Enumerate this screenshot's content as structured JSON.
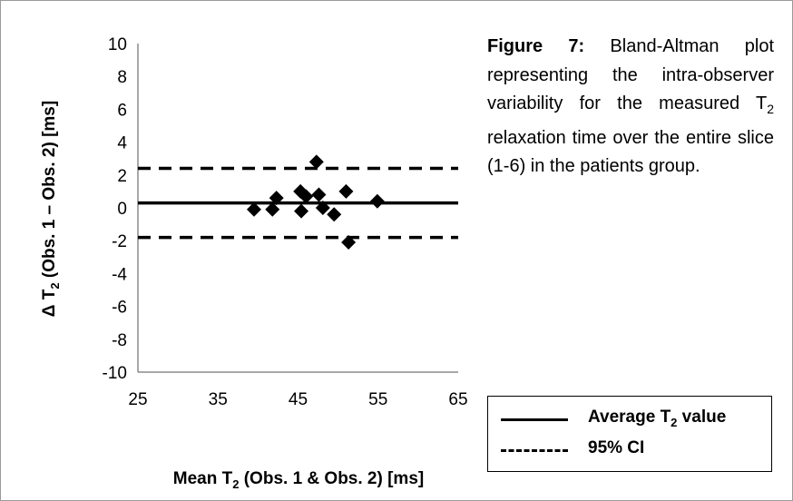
{
  "chart_data": {
    "type": "scatter",
    "x_axis": {
      "label": "Mean T",
      "label_sub": "2",
      "label_rest": " (Obs. 1 & Obs. 2) [ms]",
      "min": 25,
      "max": 65,
      "ticks": [
        25,
        35,
        45,
        55,
        65
      ]
    },
    "y_axis": {
      "label": "Δ T",
      "label_sub": "2",
      "label_rest": " (Obs. 1 – Obs. 2) [ms]",
      "min": -10,
      "max": 10,
      "ticks": [
        10,
        8,
        6,
        4,
        2,
        0,
        -2,
        -4,
        -6,
        -8,
        -10
      ]
    },
    "points": [
      {
        "x": 39.5,
        "y": -0.1
      },
      {
        "x": 41.8,
        "y": -0.1
      },
      {
        "x": 42.3,
        "y": 0.6
      },
      {
        "x": 45.3,
        "y": 1.0
      },
      {
        "x": 45.4,
        "y": -0.2
      },
      {
        "x": 46.0,
        "y": 0.7
      },
      {
        "x": 47.3,
        "y": 2.8
      },
      {
        "x": 47.6,
        "y": 0.8
      },
      {
        "x": 48.1,
        "y": 0.0
      },
      {
        "x": 49.5,
        "y": -0.4
      },
      {
        "x": 51.0,
        "y": 1.0
      },
      {
        "x": 51.3,
        "y": -2.1
      },
      {
        "x": 54.9,
        "y": 0.4
      }
    ],
    "lines": [
      {
        "name": "Average T2 value",
        "y": 0.3,
        "style": "solid"
      },
      {
        "name": "95% CI upper",
        "y": 2.4,
        "style": "dashed"
      },
      {
        "name": "95% CI lower",
        "y": -1.8,
        "style": "dashed"
      }
    ],
    "grid": false,
    "legend_position": "bottom-right"
  },
  "caption": {
    "label": "Figure 7:",
    "text_before_sub": " Bland-Altman plot representing the intra-observer variability for the measured T",
    "sub": "2",
    "text_after_sub": " relaxation time over the entire slice (1-6) in the patients group."
  },
  "legend": {
    "items": [
      {
        "label": "Average T",
        "sub": "2",
        "label_rest": " value",
        "style": "solid"
      },
      {
        "label": "95% CI",
        "sub": "",
        "label_rest": "",
        "style": "dashed"
      }
    ]
  },
  "colors": {
    "ink": "#000000",
    "axis": "#8c8c8c",
    "frame": "#9a9a9a"
  }
}
